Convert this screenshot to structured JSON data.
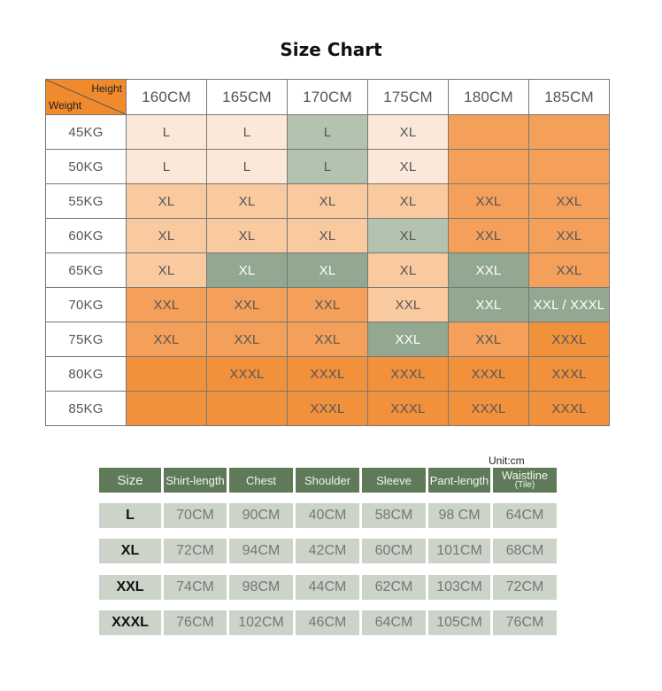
{
  "title": "Size Chart",
  "corner": {
    "height_label": "Height",
    "weight_label": "Weight",
    "color": "#f08a2c"
  },
  "heights": [
    "160CM",
    "165CM",
    "170CM",
    "175CM",
    "180CM",
    "185CM"
  ],
  "rows": [
    {
      "weight": "45KG",
      "cells": [
        {
          "v": "L",
          "f": "light"
        },
        {
          "v": "L",
          "f": "light"
        },
        {
          "v": "L",
          "f": "gray"
        },
        {
          "v": "XL",
          "f": "light"
        },
        {
          "v": "",
          "f": "orange"
        },
        {
          "v": "",
          "f": "orange"
        }
      ]
    },
    {
      "weight": "50KG",
      "cells": [
        {
          "v": "L",
          "f": "light"
        },
        {
          "v": "L",
          "f": "light"
        },
        {
          "v": "L",
          "f": "gray"
        },
        {
          "v": "XL",
          "f": "light"
        },
        {
          "v": "",
          "f": "orange"
        },
        {
          "v": "",
          "f": "orange"
        }
      ]
    },
    {
      "weight": "55KG",
      "cells": [
        {
          "v": "XL",
          "f": "peach"
        },
        {
          "v": "XL",
          "f": "peach"
        },
        {
          "v": "XL",
          "f": "peach"
        },
        {
          "v": "XL",
          "f": "peach"
        },
        {
          "v": "XXL",
          "f": "orange"
        },
        {
          "v": "XXL",
          "f": "orange"
        }
      ]
    },
    {
      "weight": "60KG",
      "cells": [
        {
          "v": "XL",
          "f": "peach"
        },
        {
          "v": "XL",
          "f": "peach"
        },
        {
          "v": "XL",
          "f": "peach"
        },
        {
          "v": "XL",
          "f": "gray"
        },
        {
          "v": "XXL",
          "f": "orange"
        },
        {
          "v": "XXL",
          "f": "orange"
        }
      ]
    },
    {
      "weight": "65KG",
      "cells": [
        {
          "v": "XL",
          "f": "peach"
        },
        {
          "v": "XL",
          "f": "dgray"
        },
        {
          "v": "XL",
          "f": "dgray"
        },
        {
          "v": "XL",
          "f": "peach"
        },
        {
          "v": "XXL",
          "f": "dgray"
        },
        {
          "v": "XXL",
          "f": "orange"
        }
      ]
    },
    {
      "weight": "70KG",
      "cells": [
        {
          "v": "XXL",
          "f": "orange"
        },
        {
          "v": "XXL",
          "f": "orange"
        },
        {
          "v": "XXL",
          "f": "orange"
        },
        {
          "v": "XXL",
          "f": "peach"
        },
        {
          "v": "XXL",
          "f": "dgray"
        },
        {
          "v": "XXL / XXXL",
          "f": "dgray"
        }
      ]
    },
    {
      "weight": "75KG",
      "cells": [
        {
          "v": "XXL",
          "f": "orange"
        },
        {
          "v": "XXL",
          "f": "orange"
        },
        {
          "v": "XXL",
          "f": "orange"
        },
        {
          "v": "XXL",
          "f": "dgray"
        },
        {
          "v": "XXL",
          "f": "orange"
        },
        {
          "v": "XXXL",
          "f": "deep"
        }
      ]
    },
    {
      "weight": "80KG",
      "cells": [
        {
          "v": "",
          "f": "deep"
        },
        {
          "v": "XXXL",
          "f": "deep"
        },
        {
          "v": "XXXL",
          "f": "deep"
        },
        {
          "v": "XXXL",
          "f": "deep"
        },
        {
          "v": "XXXL",
          "f": "deep"
        },
        {
          "v": "XXXL",
          "f": "deep"
        }
      ]
    },
    {
      "weight": "85KG",
      "cells": [
        {
          "v": "",
          "f": "deep"
        },
        {
          "v": "",
          "f": "deep"
        },
        {
          "v": "XXXL",
          "f": "deep"
        },
        {
          "v": "XXXL",
          "f": "deep"
        },
        {
          "v": "XXXL",
          "f": "deep"
        },
        {
          "v": "XXXL",
          "f": "deep"
        }
      ]
    }
  ],
  "unit": "Unit:cm",
  "measure_table": {
    "headers": [
      "Size",
      "Shirt-length",
      "Chest",
      "Shoulder",
      "Sleeve",
      "Pant-length",
      "Waistline"
    ],
    "waistline_sub": "(Tile)",
    "rows": [
      [
        "L",
        "70CM",
        "90CM",
        "40CM",
        "58CM",
        "98 CM",
        "64CM"
      ],
      [
        "XL",
        "72CM",
        "94CM",
        "42CM",
        "60CM",
        "101CM",
        "68CM"
      ],
      [
        "XXL",
        "74CM",
        "98CM",
        "44CM",
        "62CM",
        "103CM",
        "72CM"
      ],
      [
        "XXXL",
        "76CM",
        "102CM",
        "46CM",
        "64CM",
        "105CM",
        "76CM"
      ]
    ]
  },
  "colors": {
    "light": "#fce8d8",
    "peach": "#f9c9a0",
    "orange": "#f5a05a",
    "deep": "#f2913c",
    "gray": "#b4c2b0",
    "dgray": "#93a890",
    "header_green": "#5f7a58",
    "row_gray": "#ccd3c9"
  }
}
